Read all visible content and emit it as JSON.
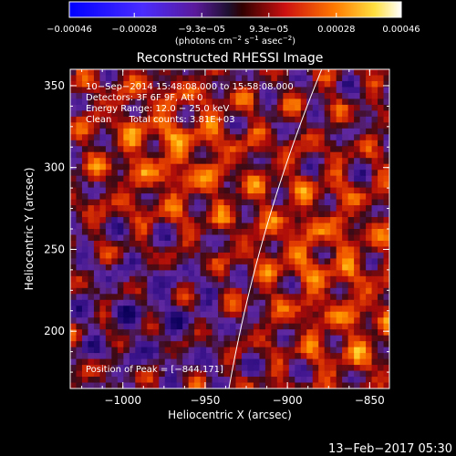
{
  "chart_data": {
    "type": "heatmap",
    "title": "Reconstructed RHESSI Image",
    "xlabel": "Heliocentric X (arcsec)",
    "ylabel": "Heliocentric Y (arcsec)",
    "xlim": [
      -1032,
      -838
    ],
    "ylim": [
      165,
      360
    ],
    "x_ticks": [
      -1000,
      -950,
      -900,
      -850
    ],
    "x_tick_labels": [
      "−1000",
      "−950",
      "−900",
      "−850"
    ],
    "y_ticks": [
      200,
      250,
      300,
      350
    ],
    "y_tick_labels": [
      "200",
      "250",
      "300",
      "350"
    ],
    "colorbar": {
      "range": [
        -0.00046,
        0.00046
      ],
      "ticks": [
        -0.00046,
        -0.00028,
        -9.3e-05,
        9.3e-05,
        0.00028,
        0.00046
      ],
      "tick_labels": [
        "−0.00046",
        "−0.00028",
        "−9.3e−05",
        "9.3e−05",
        "0.00028",
        "0.00046"
      ],
      "label_parts": [
        "(photons cm",
        "−2",
        " s",
        "−1",
        " asec",
        "−2",
        ")"
      ],
      "colormap": "rainbow-blue-purple-red-orange-yellow-white"
    },
    "annotations": [
      "10−Sep−2014 15:48:08.000 to 15:58:08.000",
      "Detectors: 3F 6F 9F, Att 0",
      "Energy Range: 12.0 − 25.0 keV",
      "Clean      Total counts: 3.81E+03"
    ],
    "peak_label": "Position of Peak = [−844,171]",
    "limb": {
      "radius": 950
    }
  },
  "timestamp": "13−Feb−2017 05:30",
  "colors": {
    "background": "#000000",
    "text": "#ffffff",
    "limb": "#ffffff"
  }
}
